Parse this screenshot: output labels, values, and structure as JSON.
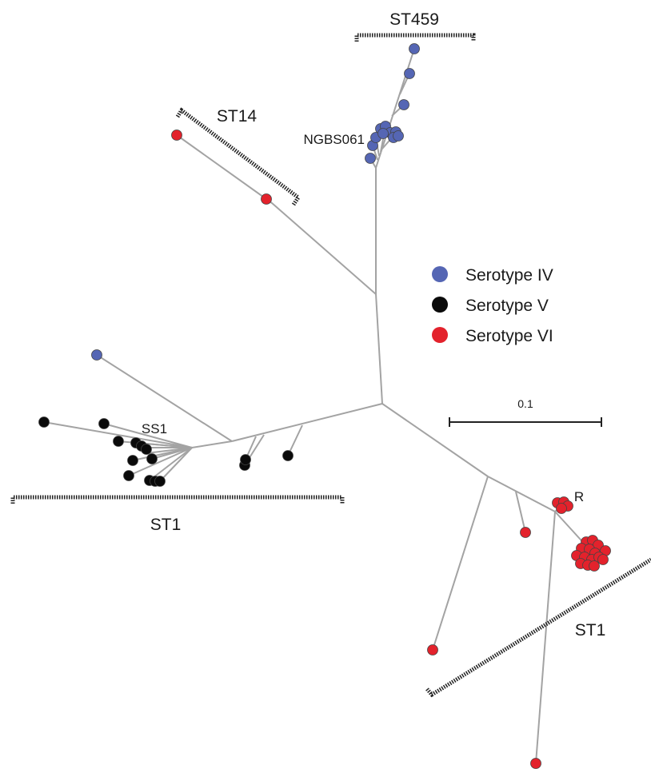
{
  "colors": {
    "serotype_iv": "#5566b4",
    "serotype_v": "#0a0a0a",
    "serotype_vi": "#e3222c",
    "branch": "#a3a3a3"
  },
  "legend": {
    "items": [
      {
        "key": "serotype_iv",
        "label": "Serotype IV"
      },
      {
        "key": "serotype_v",
        "label": "Serotype V"
      },
      {
        "key": "serotype_vi",
        "label": "Serotype VI"
      }
    ]
  },
  "clade_labels": {
    "st459": "ST459",
    "st14": "ST14",
    "st1_left": "ST1",
    "st1_right": "ST1"
  },
  "strain_labels": {
    "ngbs061": "NGBS061",
    "ss1": "SS1",
    "r": "R"
  },
  "scale_bar": {
    "label": "0.1"
  },
  "tips": {
    "serotype_iv_count": 14,
    "serotype_v_count": 18,
    "serotype_vi_count": 24
  }
}
